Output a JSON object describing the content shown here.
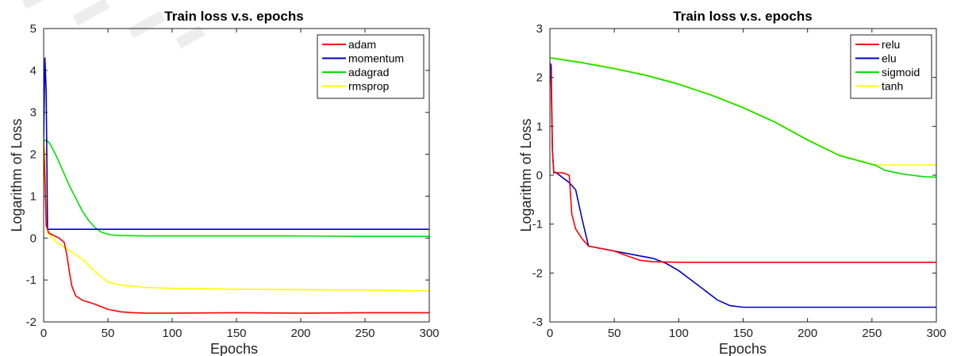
{
  "chart_data": [
    {
      "type": "line",
      "title": "Train loss v.s. epochs",
      "xlabel": "Epochs",
      "ylabel": "Logarithm of Loss",
      "xlim": [
        0,
        300
      ],
      "ylim": [
        -2,
        5
      ],
      "xticks": [
        "0",
        "50",
        "100",
        "150",
        "200",
        "250",
        "300"
      ],
      "yticks": [
        "-2",
        "-1",
        "0",
        "1",
        "2",
        "3",
        "4",
        "5"
      ],
      "grid": false,
      "legend_position": "top-right",
      "series": [
        {
          "name": "adam",
          "color": "#ff0000",
          "x": [
            0,
            1,
            2,
            4,
            8,
            12,
            16,
            18,
            20,
            22,
            25,
            30,
            40,
            50,
            60,
            70,
            80,
            100,
            150,
            200,
            250,
            300
          ],
          "y": [
            2.3,
            1.4,
            0.3,
            0.12,
            0.06,
            0.0,
            -0.1,
            -0.4,
            -0.8,
            -1.15,
            -1.38,
            -1.48,
            -1.58,
            -1.7,
            -1.76,
            -1.78,
            -1.79,
            -1.79,
            -1.78,
            -1.79,
            -1.78,
            -1.78
          ]
        },
        {
          "name": "momentum",
          "color": "#0000cc",
          "x": [
            0,
            1,
            2,
            3,
            4,
            10,
            50,
            100,
            150,
            200,
            250,
            300
          ],
          "y": [
            2.3,
            4.3,
            3.5,
            0.21,
            0.21,
            0.21,
            0.21,
            0.21,
            0.21,
            0.21,
            0.21,
            0.21
          ]
        },
        {
          "name": "adagrad",
          "color": "#00e000",
          "x": [
            0,
            2,
            5,
            10,
            15,
            20,
            25,
            30,
            35,
            40,
            45,
            50,
            55,
            60,
            80,
            100,
            150,
            200,
            250,
            300
          ],
          "y": [
            2.3,
            2.35,
            2.25,
            1.95,
            1.6,
            1.25,
            0.95,
            0.65,
            0.42,
            0.25,
            0.14,
            0.09,
            0.07,
            0.06,
            0.05,
            0.05,
            0.05,
            0.05,
            0.04,
            0.04
          ]
        },
        {
          "name": "rmsprop",
          "color": "#ffff00",
          "x": [
            0,
            1,
            2,
            3,
            4,
            10,
            20,
            30,
            40,
            50,
            60,
            80,
            100,
            150,
            200,
            250,
            300
          ],
          "y": [
            2.3,
            2.0,
            0.8,
            0.12,
            0.1,
            -0.1,
            -0.3,
            -0.5,
            -0.8,
            -1.05,
            -1.12,
            -1.18,
            -1.2,
            -1.22,
            -1.23,
            -1.24,
            -1.26
          ]
        }
      ]
    },
    {
      "type": "line",
      "title": "Train loss v.s. epochs",
      "xlabel": "Epochs",
      "ylabel": "Logarithm of Loss",
      "xlim": [
        0,
        300
      ],
      "ylim": [
        -3,
        3
      ],
      "xticks": [
        "0",
        "50",
        "100",
        "150",
        "200",
        "250",
        "300"
      ],
      "yticks": [
        "-3",
        "-2",
        "-1",
        "0",
        "1",
        "2",
        "3"
      ],
      "grid": false,
      "legend_position": "top-right",
      "series": [
        {
          "name": "relu",
          "color": "#ff0000",
          "x": [
            0,
            1,
            2,
            3,
            5,
            10,
            12,
            15,
            17,
            20,
            25,
            30,
            40,
            50,
            60,
            70,
            80,
            100,
            150,
            200,
            250,
            300
          ],
          "y": [
            2.3,
            1.8,
            0.5,
            0.07,
            0.05,
            0.05,
            0.03,
            0.0,
            -0.8,
            -1.1,
            -1.3,
            -1.45,
            -1.5,
            -1.55,
            -1.65,
            -1.74,
            -1.77,
            -1.78,
            -1.78,
            -1.78,
            -1.78,
            -1.78
          ]
        },
        {
          "name": "elu",
          "color": "#0000cc",
          "x": [
            0,
            1,
            2,
            3,
            5,
            10,
            15,
            20,
            25,
            30,
            40,
            50,
            60,
            70,
            80,
            90,
            100,
            110,
            120,
            130,
            140,
            150,
            200,
            250,
            300
          ],
          "y": [
            2.3,
            2.25,
            0.5,
            0.05,
            0.05,
            -0.05,
            -0.15,
            -0.3,
            -0.9,
            -1.45,
            -1.5,
            -1.55,
            -1.6,
            -1.65,
            -1.7,
            -1.8,
            -1.95,
            -2.15,
            -2.35,
            -2.55,
            -2.67,
            -2.7,
            -2.7,
            -2.7,
            -2.7
          ]
        },
        {
          "name": "sigmoid",
          "color": "#00e000",
          "x": [
            0,
            25,
            50,
            75,
            100,
            125,
            150,
            175,
            200,
            225,
            250,
            253,
            260,
            275,
            290,
            300
          ],
          "y": [
            2.4,
            2.3,
            2.18,
            2.04,
            1.86,
            1.64,
            1.38,
            1.08,
            0.72,
            0.4,
            0.22,
            0.2,
            0.1,
            0.02,
            -0.03,
            -0.04
          ]
        },
        {
          "name": "tanh",
          "color": "#ffff00",
          "x": [
            0,
            25,
            50,
            75,
            100,
            125,
            150,
            175,
            200,
            225,
            250,
            253,
            260,
            275,
            290,
            300
          ],
          "y": [
            2.41,
            2.31,
            2.19,
            2.05,
            1.87,
            1.65,
            1.39,
            1.09,
            0.73,
            0.41,
            0.23,
            0.21,
            0.21,
            0.21,
            0.21,
            0.21
          ]
        }
      ]
    }
  ]
}
